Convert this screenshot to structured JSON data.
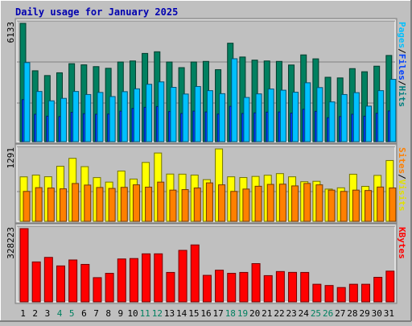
{
  "chart_data": [
    {
      "type": "bar",
      "title": "Daily usage for January 2025",
      "categories": [
        "1",
        "2",
        "3",
        "4",
        "5",
        "6",
        "7",
        "8",
        "9",
        "10",
        "11",
        "12",
        "13",
        "14",
        "15",
        "16",
        "17",
        "18",
        "19",
        "20",
        "21",
        "22",
        "23",
        "24",
        "25",
        "26",
        "27",
        "28",
        "29",
        "30",
        "31"
      ],
      "weekend_days": [
        "4",
        "5",
        "11",
        "12",
        "18",
        "19",
        "25",
        "26"
      ],
      "ymax_label": "6133",
      "ylim": [
        0,
        6133
      ],
      "right_label": [
        {
          "text": "Pages",
          "color": "#00c0ff"
        },
        {
          "text": "/",
          "color": "#000000"
        },
        {
          "text": "Files",
          "color": "#0040ff"
        },
        {
          "text": "/",
          "color": "#000000"
        },
        {
          "text": "Hits",
          "color": "#008080"
        }
      ],
      "series": [
        {
          "name": "Hits",
          "color": "#008060",
          "values": [
            6133,
            3675,
            3427,
            3570,
            4042,
            3982,
            3890,
            3803,
            4130,
            4183,
            4574,
            4659,
            4130,
            3837,
            4130,
            4160,
            3731,
            5103,
            4387,
            4226,
            4183,
            4160,
            3974,
            4497,
            4293,
            3338,
            3304,
            3786,
            3624,
            3913,
            4468
          ]
        },
        {
          "name": "Files",
          "color": "#0040ff",
          "values": [
            2180,
            1420,
            1320,
            1300,
            1520,
            1450,
            1420,
            1430,
            1580,
            1720,
            1780,
            1820,
            1560,
            1460,
            1580,
            1540,
            1430,
            1830,
            1460,
            1490,
            1530,
            1540,
            1480,
            1680,
            1570,
            1240,
            1300,
            1420,
            1320,
            1470,
            1590
          ]
        },
        {
          "name": "Pages",
          "color": "#00c0ff",
          "values": [
            4099,
            2602,
            2116,
            2244,
            2602,
            2443,
            2551,
            2338,
            2592,
            2739,
            2974,
            3098,
            2816,
            2468,
            2859,
            2644,
            2487,
            4298,
            2291,
            2477,
            2730,
            2667,
            2562,
            3052,
            2804,
            2061,
            2443,
            2540,
            1842,
            2644,
            3230
          ]
        }
      ]
    },
    {
      "type": "bar",
      "ymax_label": "1291",
      "ylim": [
        0,
        1291
      ],
      "right_label": [
        {
          "text": "Sites",
          "color": "#ff8000"
        },
        {
          "text": "/",
          "color": "#000000"
        },
        {
          "text": "Visits",
          "color": "#e0e000"
        }
      ],
      "series": [
        {
          "name": "Visits",
          "color": "#ffff00",
          "values": [
            793,
            825,
            795,
            982,
            1123,
            975,
            780,
            700,
            897,
            754,
            1050,
            1218,
            843,
            841,
            825,
            743,
            1291,
            794,
            781,
            801,
            822,
            851,
            794,
            707,
            714,
            575,
            598,
            840,
            624,
            819,
            1084
          ]
        },
        {
          "name": "Sites",
          "color": "#ff8000",
          "values": [
            534,
            601,
            594,
            580,
            675,
            647,
            604,
            587,
            606,
            651,
            610,
            700,
            557,
            566,
            595,
            686,
            651,
            534,
            576,
            626,
            659,
            663,
            632,
            676,
            651,
            557,
            534,
            557,
            550,
            612,
            596
          ]
        }
      ]
    },
    {
      "type": "bar",
      "ymax_label": "328223",
      "ylim": [
        0,
        328223
      ],
      "right_label": [
        {
          "text": "KBytes",
          "color": "#ff0000"
        }
      ],
      "series": [
        {
          "name": "KBytes",
          "color": "#ff0000",
          "values": [
            328223,
            178950,
            199290,
            161070,
            187680,
            167870,
            108520,
            127840,
            192240,
            194140,
            215240,
            215270,
            131900,
            230780,
            255100,
            118810,
            141900,
            127840,
            131900,
            171370,
            117570,
            135900,
            132160,
            131900,
            78890,
            73320,
            64210,
            78890,
            78890,
            110060,
            137720
          ]
        }
      ]
    }
  ]
}
